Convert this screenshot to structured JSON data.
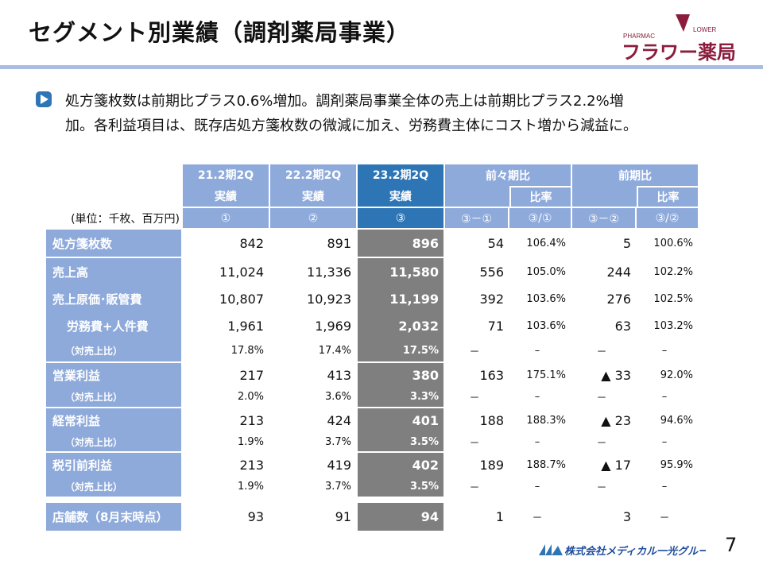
{
  "header": {
    "title": "セグメント別業績（調剤薬局事業）",
    "logo_text": "フラワー薬局",
    "logo_sub": "PHARMAC FLOWER"
  },
  "summary": {
    "line1": "処方箋枚数は前期比プラス0.6%増加。調剤薬局事業全体の売上は前期比プラス2.2%増",
    "line2": "加。各利益項目は、既存店処方箋枚数の微減に加え、労務費主体にコスト増から減益に。"
  },
  "table": {
    "unit_label": "(単位：千枚、百万円)",
    "columns": [
      {
        "period": "21.2期2Q",
        "kind": "実績",
        "key": "①"
      },
      {
        "period": "22.2期2Q",
        "kind": "実績",
        "key": "②"
      },
      {
        "period": "23.2期2Q",
        "kind": "実績",
        "key": "③"
      }
    ],
    "comparisons": [
      {
        "title": "前々期比",
        "ratio_label": "比率",
        "diff_key": "③－①",
        "ratio_key": "③/①"
      },
      {
        "title": "前期比",
        "ratio_label": "比率",
        "diff_key": "③－②",
        "ratio_key": "③/②"
      }
    ],
    "rows": [
      {
        "label": "処方箋枚数",
        "type": "main",
        "values": [
          "842",
          "891",
          "896",
          "54",
          "106.4%",
          "5",
          "100.6%"
        ]
      },
      {
        "label": "売上高",
        "type": "main",
        "values": [
          "11,024",
          "11,336",
          "11,580",
          "556",
          "105.0%",
          "244",
          "102.2%"
        ]
      },
      {
        "label": "売上原価･販管費",
        "type": "main",
        "values": [
          "10,807",
          "10,923",
          "11,199",
          "392",
          "103.6%",
          "276",
          "102.5%"
        ]
      },
      {
        "label": "労務費+人件費",
        "type": "indent",
        "values": [
          "1,961",
          "1,969",
          "2,032",
          "71",
          "103.6%",
          "63",
          "103.2%"
        ]
      },
      {
        "label": "（対売上比）",
        "type": "sub",
        "values": [
          "17.8%",
          "17.4%",
          "17.5%",
          "－",
          "–",
          "－",
          "–"
        ]
      },
      {
        "label": "営業利益",
        "type": "main",
        "values": [
          "217",
          "413",
          "380",
          "163",
          "175.1%",
          "▲ 33",
          "92.0%"
        ]
      },
      {
        "label": "（対売上比）",
        "type": "sub",
        "values": [
          "2.0%",
          "3.6%",
          "3.3%",
          "－",
          "–",
          "－",
          "–"
        ]
      },
      {
        "label": "経常利益",
        "type": "main",
        "values": [
          "213",
          "424",
          "401",
          "188",
          "188.3%",
          "▲ 23",
          "94.6%"
        ]
      },
      {
        "label": "（対売上比）",
        "type": "sub",
        "values": [
          "1.9%",
          "3.7%",
          "3.5%",
          "－",
          "–",
          "－",
          "–"
        ]
      },
      {
        "label": "税引前利益",
        "type": "main",
        "values": [
          "213",
          "419",
          "402",
          "189",
          "188.7%",
          "▲ 17",
          "95.9%"
        ]
      },
      {
        "label": "（対売上比）",
        "type": "sub",
        "values": [
          "1.9%",
          "3.7%",
          "3.5%",
          "－",
          "–",
          "－",
          "–"
        ]
      },
      {
        "label": "店舗数（8月末時点）",
        "type": "main",
        "values": [
          "93",
          "91",
          "94",
          "1",
          "－",
          "3",
          "－"
        ]
      }
    ]
  },
  "footer": {
    "company": "株式会社メディカル一光グループ",
    "page": "7"
  },
  "colors": {
    "header_blue": "#8eaadb",
    "highlight_blue": "#2e75b6",
    "current_gray": "#7f7f7f",
    "logo_maroon": "#8b1c3c",
    "rule": "#a9bde3"
  }
}
